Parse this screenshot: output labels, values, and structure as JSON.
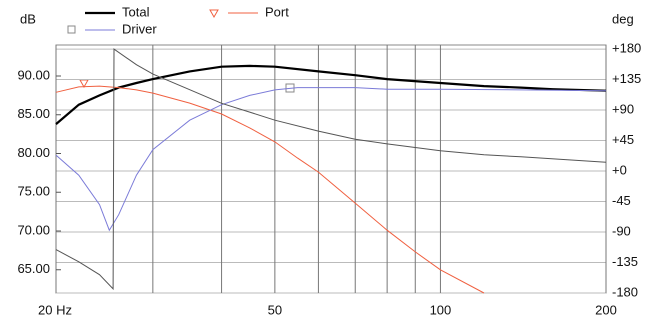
{
  "chart_data": {
    "type": "line",
    "xscale": "log",
    "ylabel": "dB",
    "y2label": "deg",
    "xlim": [
      20,
      200
    ],
    "xticks": [
      {
        "value": 20,
        "label": "20 Hz"
      },
      50,
      100,
      200
    ],
    "xgrid": [
      30,
      40,
      60,
      70,
      80,
      90
    ],
    "ylim": [
      62.0,
      94.0
    ],
    "yticks": [
      {
        "value": 65,
        "label": "65.00"
      },
      {
        "value": 70,
        "label": "70.00"
      },
      {
        "value": 75,
        "label": "75.00"
      },
      {
        "value": 80,
        "label": "80.00"
      },
      {
        "value": 85,
        "label": "85.00"
      },
      {
        "value": 90,
        "label": "90.00"
      }
    ],
    "y2lim": [
      -180,
      186
    ],
    "y2ticks": [
      {
        "value": -180,
        "label": "-180"
      },
      {
        "value": -135,
        "label": "-135"
      },
      {
        "value": -90,
        "label": "-90"
      },
      {
        "value": -45,
        "label": "-45"
      },
      {
        "value": 0,
        "label": "+0"
      },
      {
        "value": 45,
        "label": "+45"
      },
      {
        "value": 90,
        "label": "+90"
      },
      {
        "value": 135,
        "label": "+135"
      },
      {
        "value": 180,
        "label": "+180"
      }
    ],
    "y2grid": true,
    "series": [
      {
        "name": "Total",
        "color": "#000000",
        "width": 2.2,
        "x": [
          20,
          22,
          24,
          26,
          28,
          30,
          35,
          40,
          45,
          50,
          60,
          70,
          80,
          100,
          120,
          140,
          160,
          200
        ],
        "values": [
          83.8,
          86.3,
          87.5,
          88.5,
          89.1,
          89.6,
          90.6,
          91.2,
          91.3,
          91.2,
          90.6,
          90.1,
          89.6,
          89.1,
          88.7,
          88.5,
          88.3,
          88.1
        ]
      },
      {
        "name": "Port",
        "color": "#f06040",
        "width": 1,
        "x": [
          20,
          22,
          24,
          26,
          28,
          30,
          35,
          40,
          45,
          50,
          55,
          60,
          70,
          80,
          90,
          100,
          120
        ],
        "values": [
          87.9,
          88.6,
          88.7,
          88.5,
          88.2,
          87.8,
          86.5,
          85.1,
          83.3,
          81.5,
          79.4,
          77.6,
          73.6,
          70.1,
          67.3,
          65.0,
          62.0
        ]
      },
      {
        "name": "Driver",
        "color": "#7b7bd8",
        "width": 1,
        "x": [
          20,
          22,
          24,
          25,
          26,
          28,
          30,
          35,
          40,
          45,
          50,
          55,
          60,
          70,
          80,
          100,
          140,
          200
        ],
        "values": [
          79.8,
          77.2,
          73.4,
          70.1,
          72.1,
          77.2,
          80.5,
          84.3,
          86.3,
          87.5,
          88.2,
          88.5,
          88.5,
          88.5,
          88.3,
          88.3,
          88.2,
          88.1
        ]
      },
      {
        "color": "#555555",
        "width": 1,
        "axis": "y2",
        "x": [
          20,
          22,
          24,
          25.4,
          25.5,
          28,
          30,
          35,
          40,
          45,
          50,
          60,
          70,
          80,
          100,
          120,
          140,
          200
        ],
        "values": [
          -116,
          -134,
          -153,
          -174,
          180,
          157,
          143,
          120,
          100,
          87,
          75,
          59,
          47,
          40,
          30,
          24,
          21,
          13
        ]
      }
    ]
  }
}
